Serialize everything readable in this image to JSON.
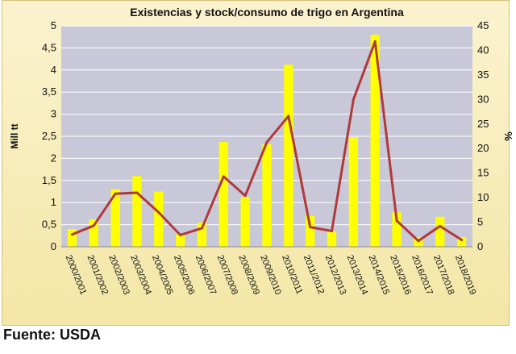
{
  "chart_data": {
    "type": "bar",
    "title": "Existencias y stock/consumo de trigo en Argentina",
    "categories": [
      "2000/2001",
      "2001/2002",
      "2002/2003",
      "2003/2004",
      "2004/2005",
      "2005/2006",
      "2006/2007",
      "2007/2008",
      "2008/2009",
      "2009/2010",
      "2010/2011",
      "2011/2012",
      "2012/2013",
      "2013/2014",
      "2014/2015",
      "2015/2016",
      "2016/2017",
      "2017/2018",
      "2018/2019"
    ],
    "ylabel": "Mill tt",
    "ylim": [
      0,
      5
    ],
    "yticks": [
      "0",
      "0,5",
      "1",
      "1,5",
      "2",
      "2,5",
      "3",
      "3,5",
      "4",
      "4,5",
      "5"
    ],
    "y2label": "%",
    "y2lim": [
      0,
      45
    ],
    "y2ticks": [
      "0",
      "5",
      "10",
      "15",
      "20",
      "25",
      "30",
      "35",
      "40",
      "45"
    ],
    "grid": true,
    "series": [
      {
        "axis": "left",
        "type": "bar",
        "color": "#ffff00",
        "values": [
          0.4,
          0.62,
          1.3,
          1.6,
          1.25,
          0.28,
          0.55,
          2.37,
          1.12,
          2.32,
          4.12,
          0.7,
          0.35,
          2.48,
          4.8,
          0.78,
          0.22,
          0.68,
          0.22
        ]
      },
      {
        "axis": "right",
        "type": "line",
        "color": "#b03a3a",
        "values": [
          2.5,
          4.3,
          10.8,
          11.0,
          7.0,
          2.4,
          3.8,
          14.3,
          10.4,
          21.3,
          26.6,
          4.0,
          3.2,
          30.0,
          41.8,
          5.3,
          1.2,
          4.2,
          1.4
        ]
      }
    ],
    "source_note": "Fuente: USDA"
  },
  "colors": {
    "bar": "#ffff00",
    "line": "#b03a3a",
    "plot_bg": "#c8c8d8",
    "grid": "#ffffff",
    "text": "#111111"
  }
}
